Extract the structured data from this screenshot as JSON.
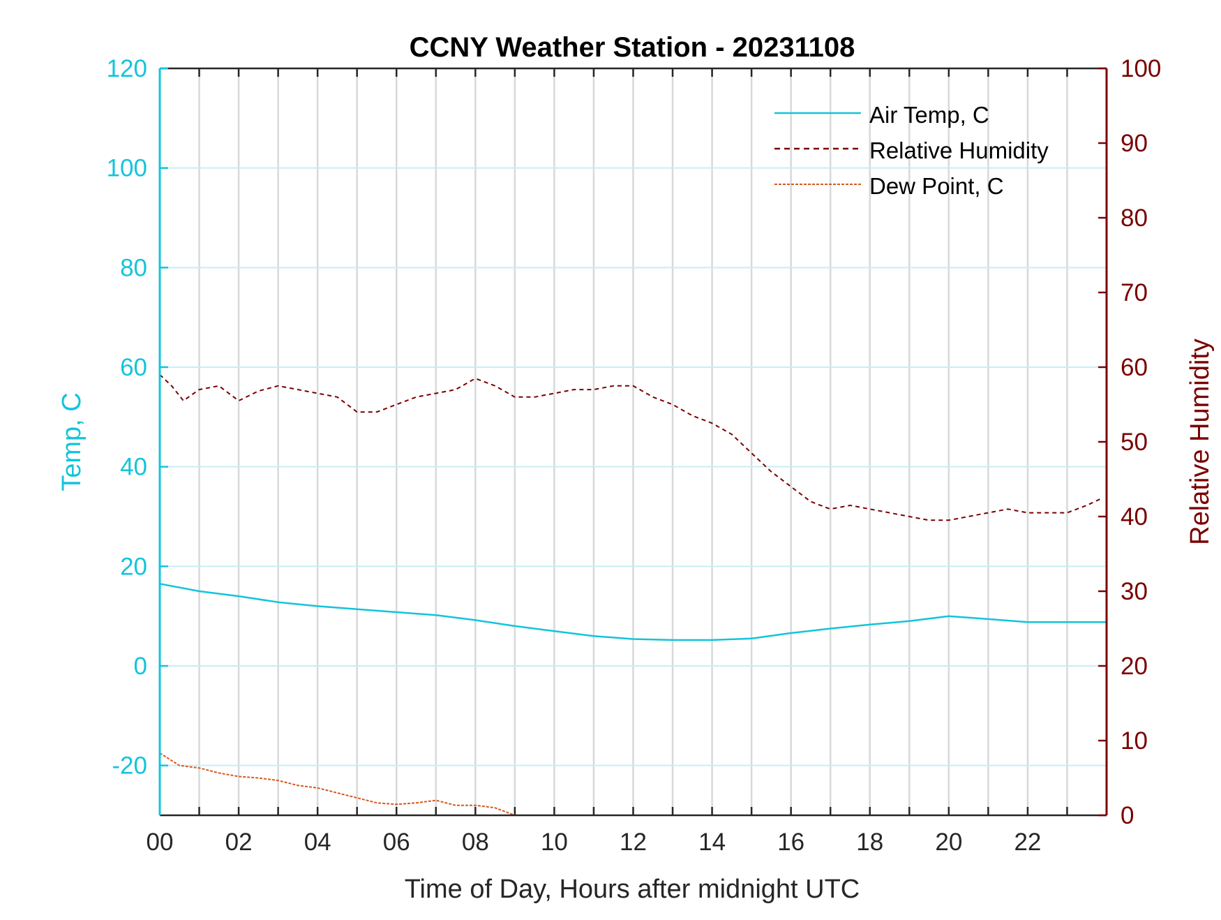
{
  "colors": {
    "air_temp": "#13c4db",
    "humidity": "#7a0000",
    "dew_point": "#d4591f",
    "left_axis": "#13c4db",
    "right_axis": "#7a0000",
    "h_grid": "#c9eef4",
    "v_grid": "#d6d9dc",
    "frame": "#262626"
  },
  "chart_data": {
    "type": "line",
    "title": "CCNY Weather Station - 20231108",
    "xlabel": "Time of Day, Hours after midnight UTC",
    "ylabel_left": "Temp, C",
    "ylabel_right": "Relative Humidity",
    "xlim": [
      0,
      24
    ],
    "ylim_left": [
      -30,
      120
    ],
    "ylim_right": [
      0,
      100
    ],
    "x_ticks": [
      "00",
      "02",
      "04",
      "06",
      "08",
      "10",
      "12",
      "14",
      "16",
      "18",
      "20",
      "22"
    ],
    "y_ticks_left": [
      "120",
      "100",
      "80",
      "60",
      "40",
      "20",
      "0",
      "-20"
    ],
    "y_ticks_right": [
      "100",
      "90",
      "80",
      "70",
      "60",
      "50",
      "40",
      "30",
      "20",
      "10",
      "0"
    ],
    "grid": "vertical lines every hour, horizontal lines at left-axis ticks",
    "legend_position": "top-right",
    "series": [
      {
        "name": "Air Temp, C",
        "axis": "left",
        "line_style": "solid",
        "x": [
          0,
          1,
          2,
          3,
          4,
          5,
          6,
          7,
          8,
          9,
          10,
          11,
          12,
          13,
          14,
          15,
          16,
          17,
          18,
          19,
          20,
          21,
          22,
          23,
          24
        ],
        "y": [
          16.5,
          15,
          14,
          12.8,
          12,
          11.4,
          10.8,
          10.2,
          9.2,
          8,
          7,
          6,
          5.4,
          5.2,
          5.2,
          5.5,
          6.6,
          7.5,
          8.3,
          9,
          10,
          9.4,
          8.8,
          8.8,
          8.8
        ]
      },
      {
        "name": "Relative Humidity",
        "axis": "right",
        "line_style": "dashed",
        "x": [
          0,
          0.3,
          0.6,
          1,
          1.5,
          2,
          2.5,
          3,
          3.5,
          4,
          4.5,
          5,
          5.5,
          6,
          6.5,
          7,
          7.5,
          8,
          8.5,
          9,
          9.5,
          10,
          10.5,
          11,
          11.5,
          12,
          12.5,
          13,
          13.5,
          14,
          14.5,
          15,
          15.5,
          16,
          16.5,
          17,
          17.5,
          18,
          18.5,
          19,
          19.5,
          20,
          20.5,
          21,
          21.5,
          22,
          22.5,
          23,
          23.5,
          23.9
        ],
        "y": [
          59,
          57.5,
          55.5,
          57,
          57.5,
          55.5,
          56.8,
          57.5,
          57,
          56.5,
          56,
          54,
          54,
          55,
          56,
          56.5,
          57,
          58.5,
          57.5,
          56,
          56,
          56.5,
          57,
          57,
          57.5,
          57.5,
          56,
          55,
          53.5,
          52.5,
          51,
          48.5,
          46,
          44,
          42,
          41,
          41.5,
          41,
          40.5,
          40,
          39.5,
          39.5,
          40,
          40.5,
          41,
          40.5,
          40.5,
          40.5,
          41.5,
          42.5
        ]
      },
      {
        "name": "Dew Point, C",
        "axis": "left",
        "line_style": "dashed",
        "x": [
          0,
          0.5,
          1,
          1.5,
          2,
          2.5,
          3,
          3.5,
          4,
          4.5,
          5,
          5.5,
          6,
          6.5,
          7,
          7.5,
          8,
          8.5,
          9
        ],
        "y": [
          -17.5,
          -20,
          -20.5,
          -21.5,
          -22.2,
          -22.5,
          -23,
          -24,
          -24.5,
          -25.5,
          -26.5,
          -27.5,
          -27.8,
          -27.5,
          -27,
          -28,
          -28,
          -28.5,
          -30
        ]
      }
    ]
  }
}
